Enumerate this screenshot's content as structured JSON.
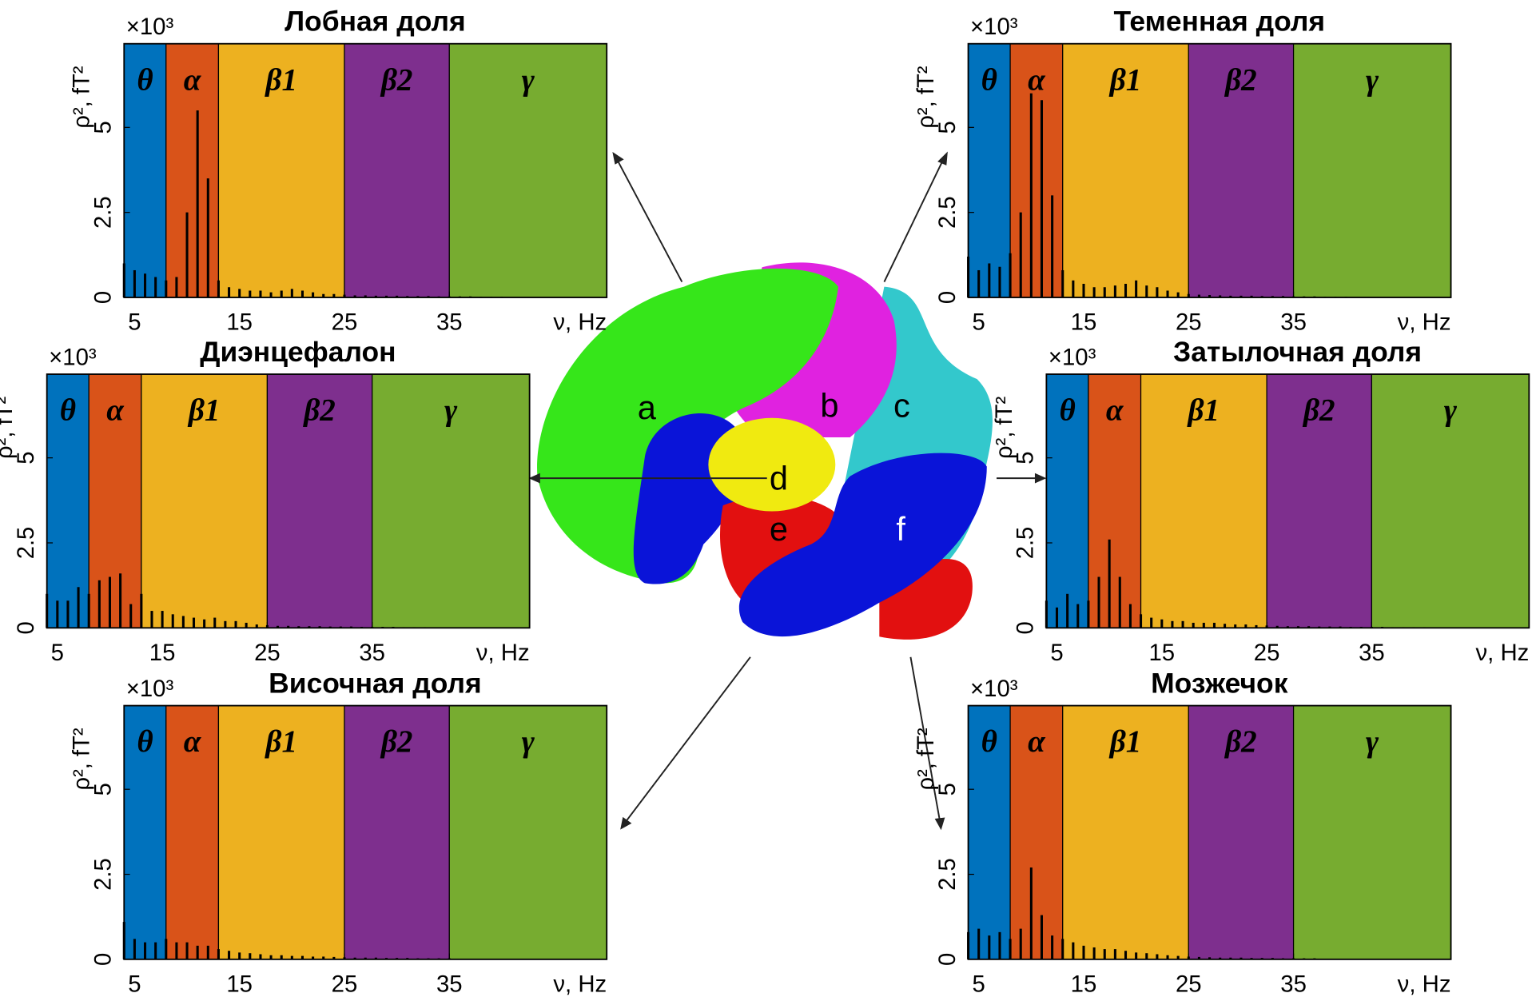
{
  "chart_data": [
    {
      "type": "spectrum",
      "title": "Лобная доля",
      "multiplier": "×10³",
      "ylabel": "ρ², fT²",
      "xlabel": "ν, Hz",
      "color": "#000000",
      "bands": [
        {
          "name": "θ",
          "from": 4,
          "to": 8,
          "color": "#0072bd"
        },
        {
          "name": "α",
          "from": 8,
          "to": 13,
          "color": "#d95319"
        },
        {
          "name": "β1",
          "from": 13,
          "to": 25,
          "color": "#edb120"
        },
        {
          "name": "β2",
          "from": 25,
          "to": 35,
          "color": "#7e2f8e"
        },
        {
          "name": "γ",
          "from": 35,
          "to": 50,
          "color": "#77ac30"
        }
      ],
      "x": [
        4,
        5,
        6,
        7,
        8,
        9,
        10,
        11,
        12,
        13,
        14,
        15,
        16,
        17,
        18,
        19,
        20,
        21,
        22,
        23,
        24,
        25,
        26,
        27,
        28,
        29,
        30,
        31,
        32,
        33,
        34,
        35,
        36,
        37,
        38,
        39,
        40
      ],
      "values": [
        1.0,
        0.8,
        0.7,
        0.6,
        0.5,
        0.6,
        2.5,
        5.5,
        3.5,
        0.5,
        0.3,
        0.25,
        0.2,
        0.2,
        0.15,
        0.2,
        0.25,
        0.2,
        0.15,
        0.1,
        0.1,
        0.08,
        0.06,
        0.06,
        0.05,
        0.05,
        0.05,
        0.04,
        0.04,
        0.04,
        0.03,
        0.03,
        0.03,
        0.03,
        0.02,
        0.02,
        0.02
      ],
      "xlim": [
        4,
        50
      ],
      "xticks": [
        5,
        15,
        25,
        35
      ],
      "ylim": [
        0,
        7.46
      ],
      "yticks": [
        0,
        2.5,
        5
      ]
    },
    {
      "type": "spectrum",
      "title": "Теменная доля",
      "multiplier": "×10³",
      "ylabel": "ρ², fT²",
      "xlabel": "ν, Hz",
      "color": "#000000",
      "bands": [
        {
          "name": "θ",
          "from": 4,
          "to": 8,
          "color": "#0072bd"
        },
        {
          "name": "α",
          "from": 8,
          "to": 13,
          "color": "#d95319"
        },
        {
          "name": "β1",
          "from": 13,
          "to": 25,
          "color": "#edb120"
        },
        {
          "name": "β2",
          "from": 25,
          "to": 35,
          "color": "#7e2f8e"
        },
        {
          "name": "γ",
          "from": 35,
          "to": 50,
          "color": "#77ac30"
        }
      ],
      "x": [
        4,
        5,
        6,
        7,
        8,
        9,
        10,
        11,
        12,
        13,
        14,
        15,
        16,
        17,
        18,
        19,
        20,
        21,
        22,
        23,
        24,
        25,
        26,
        27,
        28,
        29,
        30,
        31,
        32,
        33,
        34,
        35,
        36,
        37,
        38,
        39,
        40
      ],
      "values": [
        1.2,
        0.8,
        1.0,
        0.9,
        1.3,
        2.5,
        6.0,
        5.8,
        3.0,
        0.8,
        0.5,
        0.4,
        0.3,
        0.3,
        0.35,
        0.4,
        0.5,
        0.35,
        0.3,
        0.2,
        0.15,
        0.1,
        0.08,
        0.07,
        0.06,
        0.05,
        0.05,
        0.05,
        0.04,
        0.04,
        0.04,
        0.03,
        0.03,
        0.03,
        0.02,
        0.02,
        0.02
      ],
      "xlim": [
        4,
        50
      ],
      "xticks": [
        5,
        15,
        25,
        35
      ],
      "ylim": [
        0,
        7.46
      ],
      "yticks": [
        0,
        2.5,
        5
      ]
    },
    {
      "type": "spectrum",
      "title": "Диэнцефалон",
      "multiplier": "×10³",
      "ylabel": "ρ², fT²",
      "xlabel": "ν, Hz",
      "color": "#000000",
      "bands": [
        {
          "name": "θ",
          "from": 4,
          "to": 8,
          "color": "#0072bd"
        },
        {
          "name": "α",
          "from": 8,
          "to": 13,
          "color": "#d95319"
        },
        {
          "name": "β1",
          "from": 13,
          "to": 25,
          "color": "#edb120"
        },
        {
          "name": "β2",
          "from": 25,
          "to": 35,
          "color": "#7e2f8e"
        },
        {
          "name": "γ",
          "from": 35,
          "to": 50,
          "color": "#77ac30"
        }
      ],
      "x": [
        4,
        5,
        6,
        7,
        8,
        9,
        10,
        11,
        12,
        13,
        14,
        15,
        16,
        17,
        18,
        19,
        20,
        21,
        22,
        23,
        24,
        25,
        26,
        27,
        28,
        29,
        30,
        31,
        32,
        33,
        34,
        35,
        36,
        37,
        38,
        39,
        40
      ],
      "values": [
        1.0,
        0.8,
        0.8,
        1.2,
        1.0,
        1.4,
        1.5,
        1.6,
        0.7,
        1.0,
        0.5,
        0.5,
        0.4,
        0.35,
        0.3,
        0.25,
        0.3,
        0.2,
        0.2,
        0.15,
        0.1,
        0.08,
        0.06,
        0.06,
        0.05,
        0.05,
        0.05,
        0.04,
        0.04,
        0.04,
        0.03,
        0.03,
        0.03,
        0.03,
        0.02,
        0.02,
        0.02
      ],
      "xlim": [
        4,
        50
      ],
      "xticks": [
        5,
        15,
        25,
        35
      ],
      "ylim": [
        0,
        7.46
      ],
      "yticks": [
        0,
        2.5,
        5
      ]
    },
    {
      "type": "spectrum",
      "title": "Затылочная доля",
      "multiplier": "×10³",
      "ylabel": "ρ², fT²",
      "xlabel": "ν, Hz",
      "color": "#000000",
      "bands": [
        {
          "name": "θ",
          "from": 4,
          "to": 8,
          "color": "#0072bd"
        },
        {
          "name": "α",
          "from": 8,
          "to": 13,
          "color": "#d95319"
        },
        {
          "name": "β1",
          "from": 13,
          "to": 25,
          "color": "#edb120"
        },
        {
          "name": "β2",
          "from": 25,
          "to": 35,
          "color": "#7e2f8e"
        },
        {
          "name": "γ",
          "from": 35,
          "to": 50,
          "color": "#77ac30"
        }
      ],
      "x": [
        4,
        5,
        6,
        7,
        8,
        9,
        10,
        11,
        12,
        13,
        14,
        15,
        16,
        17,
        18,
        19,
        20,
        21,
        22,
        23,
        24,
        25,
        26,
        27,
        28,
        29,
        30,
        31,
        32,
        33,
        34,
        35,
        36,
        37,
        38,
        39,
        40
      ],
      "values": [
        0.8,
        0.6,
        1.0,
        0.7,
        0.8,
        1.5,
        2.6,
        1.5,
        0.7,
        0.4,
        0.3,
        0.25,
        0.2,
        0.2,
        0.15,
        0.15,
        0.15,
        0.12,
        0.1,
        0.1,
        0.08,
        0.07,
        0.06,
        0.05,
        0.05,
        0.05,
        0.04,
        0.04,
        0.04,
        0.03,
        0.03,
        0.03,
        0.03,
        0.02,
        0.02,
        0.02,
        0.02
      ],
      "xlim": [
        4,
        50
      ],
      "xticks": [
        5,
        15,
        25,
        35
      ],
      "ylim": [
        0,
        7.46
      ],
      "yticks": [
        0,
        2.5,
        5
      ]
    },
    {
      "type": "spectrum",
      "title": "Височная доля",
      "multiplier": "×10³",
      "ylabel": "ρ², fT²",
      "xlabel": "ν, Hz",
      "color": "#000000",
      "bands": [
        {
          "name": "θ",
          "from": 4,
          "to": 8,
          "color": "#0072bd"
        },
        {
          "name": "α",
          "from": 8,
          "to": 13,
          "color": "#d95319"
        },
        {
          "name": "β1",
          "from": 13,
          "to": 25,
          "color": "#edb120"
        },
        {
          "name": "β2",
          "from": 25,
          "to": 35,
          "color": "#7e2f8e"
        },
        {
          "name": "γ",
          "from": 35,
          "to": 50,
          "color": "#77ac30"
        }
      ],
      "x": [
        4,
        5,
        6,
        7,
        8,
        9,
        10,
        11,
        12,
        13,
        14,
        15,
        16,
        17,
        18,
        19,
        20,
        21,
        22,
        23,
        24,
        25,
        26,
        27,
        28,
        29,
        30,
        31,
        32,
        33,
        34,
        35,
        36,
        37,
        38,
        39,
        40
      ],
      "values": [
        1.1,
        0.6,
        0.5,
        0.5,
        0.6,
        0.5,
        0.5,
        0.4,
        0.4,
        0.3,
        0.25,
        0.2,
        0.18,
        0.15,
        0.12,
        0.12,
        0.1,
        0.1,
        0.08,
        0.08,
        0.07,
        0.06,
        0.05,
        0.05,
        0.05,
        0.04,
        0.04,
        0.04,
        0.03,
        0.03,
        0.03,
        0.03,
        0.02,
        0.02,
        0.02,
        0.02,
        0.02
      ],
      "xlim": [
        4,
        50
      ],
      "xticks": [
        5,
        15,
        25,
        35
      ],
      "ylim": [
        0,
        7.46
      ],
      "yticks": [
        0,
        2.5,
        5
      ]
    },
    {
      "type": "spectrum",
      "title": "Мозжечок",
      "multiplier": "×10³",
      "ylabel": "ρ², fT²",
      "xlabel": "ν, Hz",
      "color": "#000000",
      "bands": [
        {
          "name": "θ",
          "from": 4,
          "to": 8,
          "color": "#0072bd"
        },
        {
          "name": "α",
          "from": 8,
          "to": 13,
          "color": "#d95319"
        },
        {
          "name": "β1",
          "from": 13,
          "to": 25,
          "color": "#edb120"
        },
        {
          "name": "β2",
          "from": 25,
          "to": 35,
          "color": "#7e2f8e"
        },
        {
          "name": "γ",
          "from": 35,
          "to": 50,
          "color": "#77ac30"
        }
      ],
      "x": [
        4,
        5,
        6,
        7,
        8,
        9,
        10,
        11,
        12,
        13,
        14,
        15,
        16,
        17,
        18,
        19,
        20,
        21,
        22,
        23,
        24,
        25,
        26,
        27,
        28,
        29,
        30,
        31,
        32,
        33,
        34,
        35,
        36,
        37,
        38,
        39,
        40
      ],
      "values": [
        0.8,
        0.9,
        0.7,
        0.8,
        0.6,
        0.9,
        2.7,
        1.3,
        0.7,
        0.6,
        0.5,
        0.4,
        0.35,
        0.3,
        0.3,
        0.25,
        0.2,
        0.18,
        0.15,
        0.12,
        0.1,
        0.08,
        0.07,
        0.06,
        0.05,
        0.05,
        0.05,
        0.04,
        0.04,
        0.04,
        0.03,
        0.03,
        0.03,
        0.03,
        0.02,
        0.02,
        0.02
      ],
      "xlim": [
        4,
        50
      ],
      "xticks": [
        5,
        15,
        25,
        35
      ],
      "ylim": [
        0,
        7.46
      ],
      "yticks": [
        0,
        2.5,
        5
      ]
    }
  ],
  "brain": {
    "labels": [
      "a",
      "b",
      "c",
      "d",
      "e",
      "f"
    ]
  }
}
